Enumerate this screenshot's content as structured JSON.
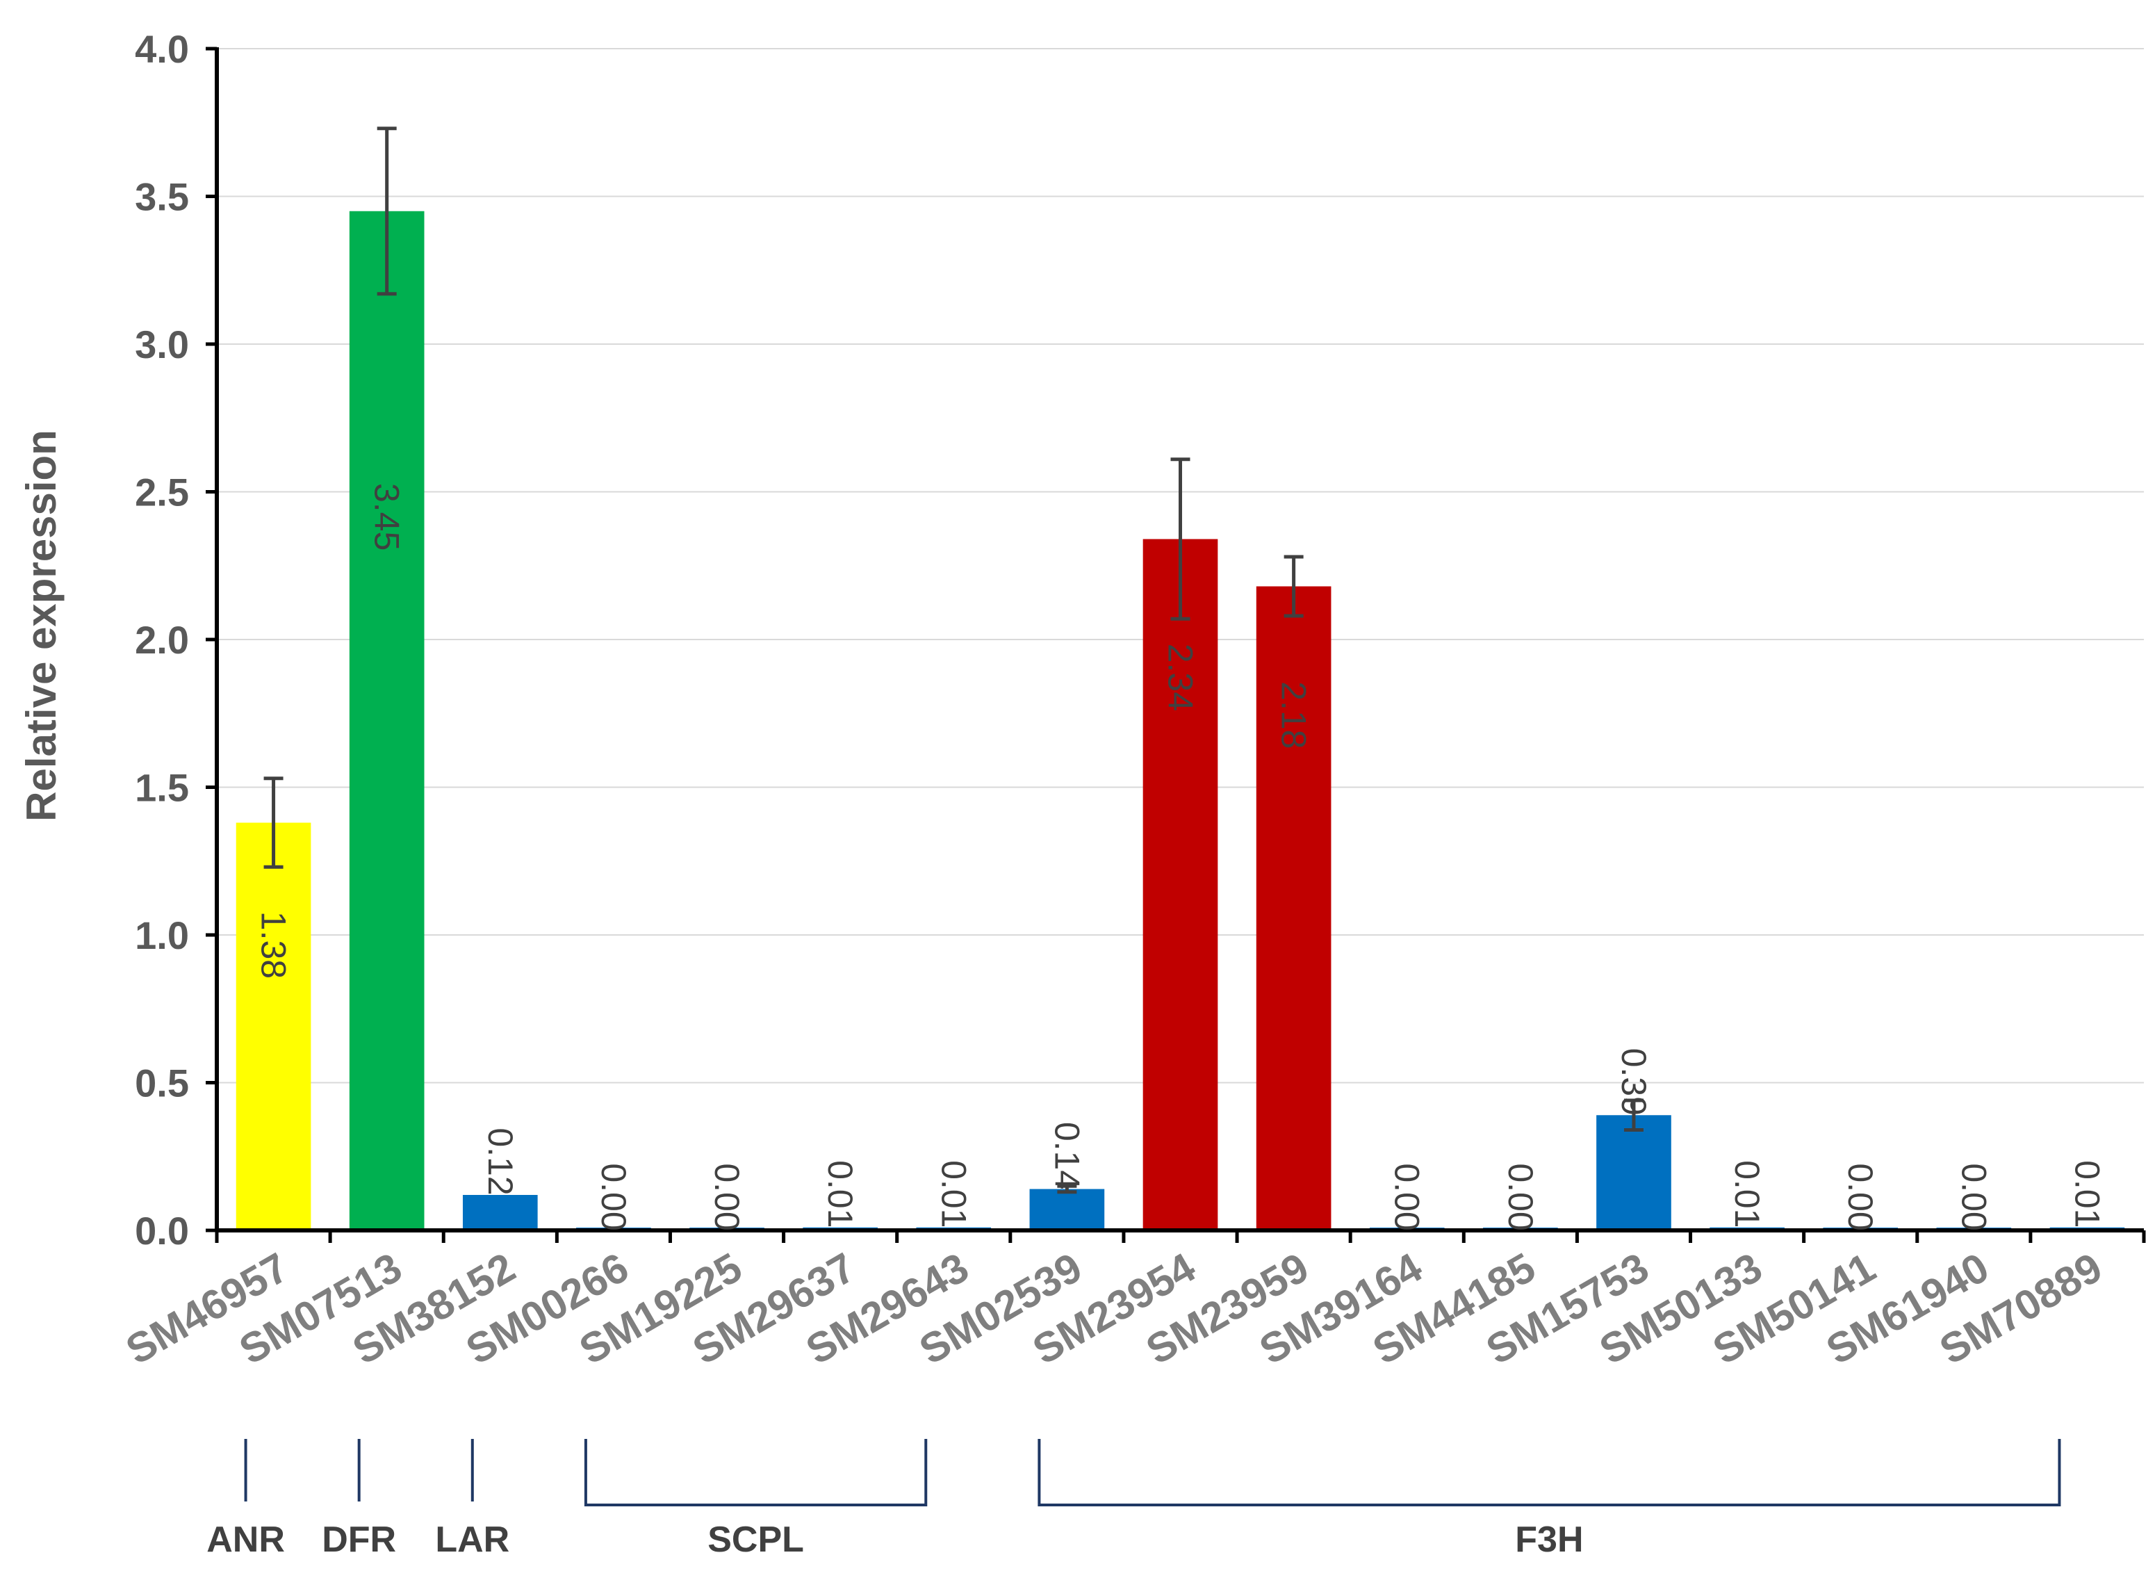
{
  "chart_data": {
    "type": "bar",
    "title": "",
    "xlabel": "",
    "ylabel": "Relative expression",
    "ylim": [
      0,
      4.0
    ],
    "yticks": [
      "0.0",
      "0.5",
      "1.0",
      "1.5",
      "2.0",
      "2.5",
      "3.0",
      "3.5",
      "4.0"
    ],
    "grid": true,
    "legend": "none",
    "categories": [
      "SM46957",
      "SM07513",
      "SM38152",
      "SM00266",
      "SM19225",
      "SM29637",
      "SM29643",
      "SM02539",
      "SM23954",
      "SM23959",
      "SM39164",
      "SM44185",
      "SM15753",
      "SM50133",
      "SM50141",
      "SM61940",
      "SM70889"
    ],
    "values": [
      1.38,
      3.45,
      0.12,
      0.0,
      0.0,
      0.01,
      0.01,
      0.14,
      2.34,
      2.18,
      0.0,
      0.0,
      0.39,
      0.01,
      0.0,
      0.0,
      0.01
    ],
    "data_labels": [
      "1.38",
      "3.45",
      "0.12",
      "0.00",
      "0.00",
      "0.01",
      "0.01",
      "0.14",
      "2.34",
      "2.18",
      "0.00",
      "0.00",
      "0.39",
      "0.01",
      "0.00",
      "0.00",
      "0.01"
    ],
    "errors": [
      0.15,
      0.28,
      0.0,
      0.0,
      0.0,
      0.0,
      0.0,
      0.01,
      0.27,
      0.1,
      0.0,
      0.0,
      0.05,
      0.0,
      0.0,
      0.0,
      0.0
    ],
    "bar_colors": [
      "#ffff00",
      "#00b050",
      "#0070c0",
      "#0070c0",
      "#0070c0",
      "#0070c0",
      "#0070c0",
      "#0070c0",
      "#c00000",
      "#c00000",
      "#0070c0",
      "#0070c0",
      "#0070c0",
      "#0070c0",
      "#0070c0",
      "#0070c0",
      "#0070c0"
    ],
    "groups": [
      {
        "label": "ANR",
        "from": 0,
        "to": 0
      },
      {
        "label": "DFR",
        "from": 1,
        "to": 1
      },
      {
        "label": "LAR",
        "from": 2,
        "to": 2
      },
      {
        "label": "SCPL",
        "from": 3,
        "to": 6
      },
      {
        "label": "F3H",
        "from": 7,
        "to": 16
      }
    ],
    "colors": {
      "grid": "#d9d9d9",
      "axis": "#000000",
      "errorbar": "#404040",
      "bracket": "#1f3864"
    }
  }
}
